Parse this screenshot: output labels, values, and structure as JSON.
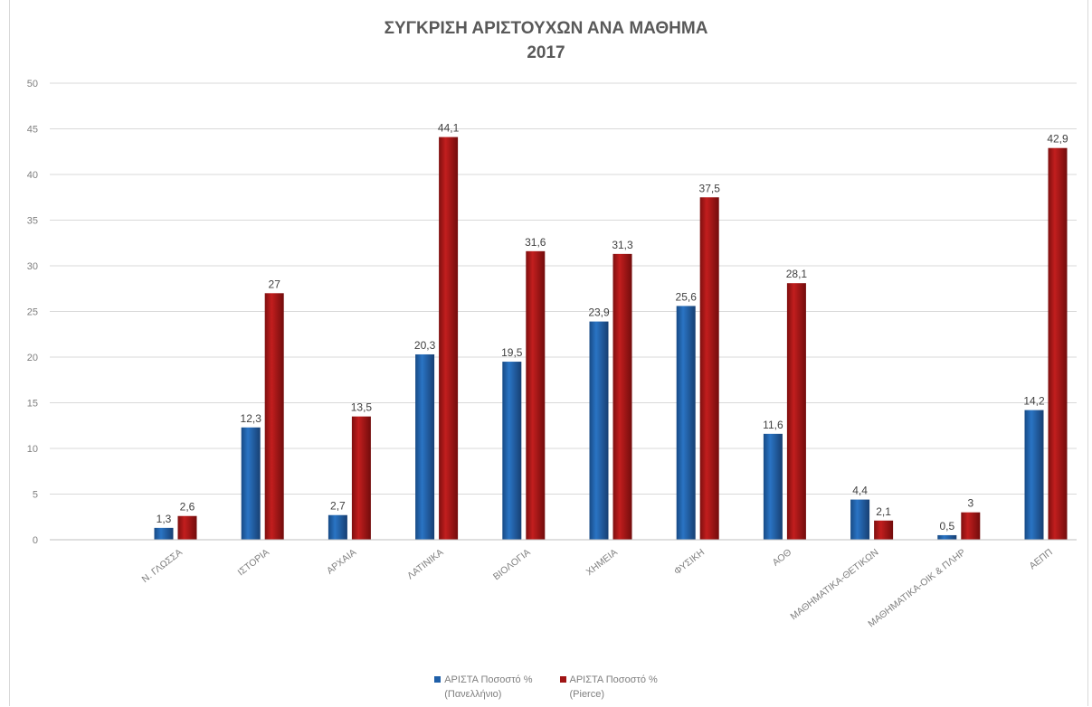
{
  "colors": {
    "series1": "#1f5fa8",
    "series2": "#a01414",
    "grid": "#d9d9d9",
    "text": "#595959"
  },
  "chart_data": {
    "type": "bar",
    "title": "ΣΥΓΚΡΙΣΗ ΑΡΙΣΤΟΥΧΩΝ ΑΝΑ ΜΑΘΗΜΑ",
    "subtitle": "2017",
    "xlabel": "",
    "ylabel": "",
    "ylim": [
      0,
      50
    ],
    "yticks": [
      "0",
      "5",
      "10",
      "15",
      "20",
      "25",
      "30",
      "35",
      "40",
      "45",
      "50"
    ],
    "grid": true,
    "legend_position": "bottom",
    "categories": [
      "Ν. ΓΛΩΣΣΑ",
      "ΙΣΤΟΡΙΑ",
      "ΑΡΧΑΙΑ",
      "ΛΑΤΙΝΙΚΑ",
      "ΒΙΟΛΟΓΙΑ",
      "ΧΗΜΕΙΑ",
      "ΦΥΣΙΚΗ",
      "ΑΟΘ",
      "ΜΑΘΗΜΑΤΙΚΑ-ΘΕΤΙΚΩΝ",
      "ΜΑΘΗΜΑΤΙΚΑ-ΟΙΚ & ΠΛΗΡ",
      "ΑΕΠΠ"
    ],
    "series": [
      {
        "name": "ΑΡΙΣΤΑ Ποσοστό % (Πανελλήνιο)",
        "values": [
          1.3,
          12.3,
          2.7,
          20.3,
          19.5,
          23.9,
          25.6,
          11.6,
          4.4,
          0.5,
          14.2
        ],
        "labels": [
          "1,3",
          "12,3",
          "2,7",
          "20,3",
          "19,5",
          "23,9",
          "25,6",
          "11,6",
          "4,4",
          "0,5",
          "14,2"
        ]
      },
      {
        "name": "ΑΡΙΣΤΑ Ποσοστό % (Pierce)",
        "values": [
          2.6,
          27,
          13.5,
          44.1,
          31.6,
          31.3,
          37.5,
          28.1,
          2.1,
          3,
          42.9
        ],
        "labels": [
          "2,6",
          "27",
          "13,5",
          "44,1",
          "31,6",
          "31,3",
          "37,5",
          "28,1",
          "2,1",
          "3",
          "42,9"
        ]
      }
    ]
  },
  "legend": {
    "items": [
      {
        "label": "ΑΡΙΣΤΑ Ποσοστό %\n(Πανελλήνιο)"
      },
      {
        "label": "ΑΡΙΣΤΑ Ποσοστό %\n(Pierce)"
      }
    ]
  }
}
